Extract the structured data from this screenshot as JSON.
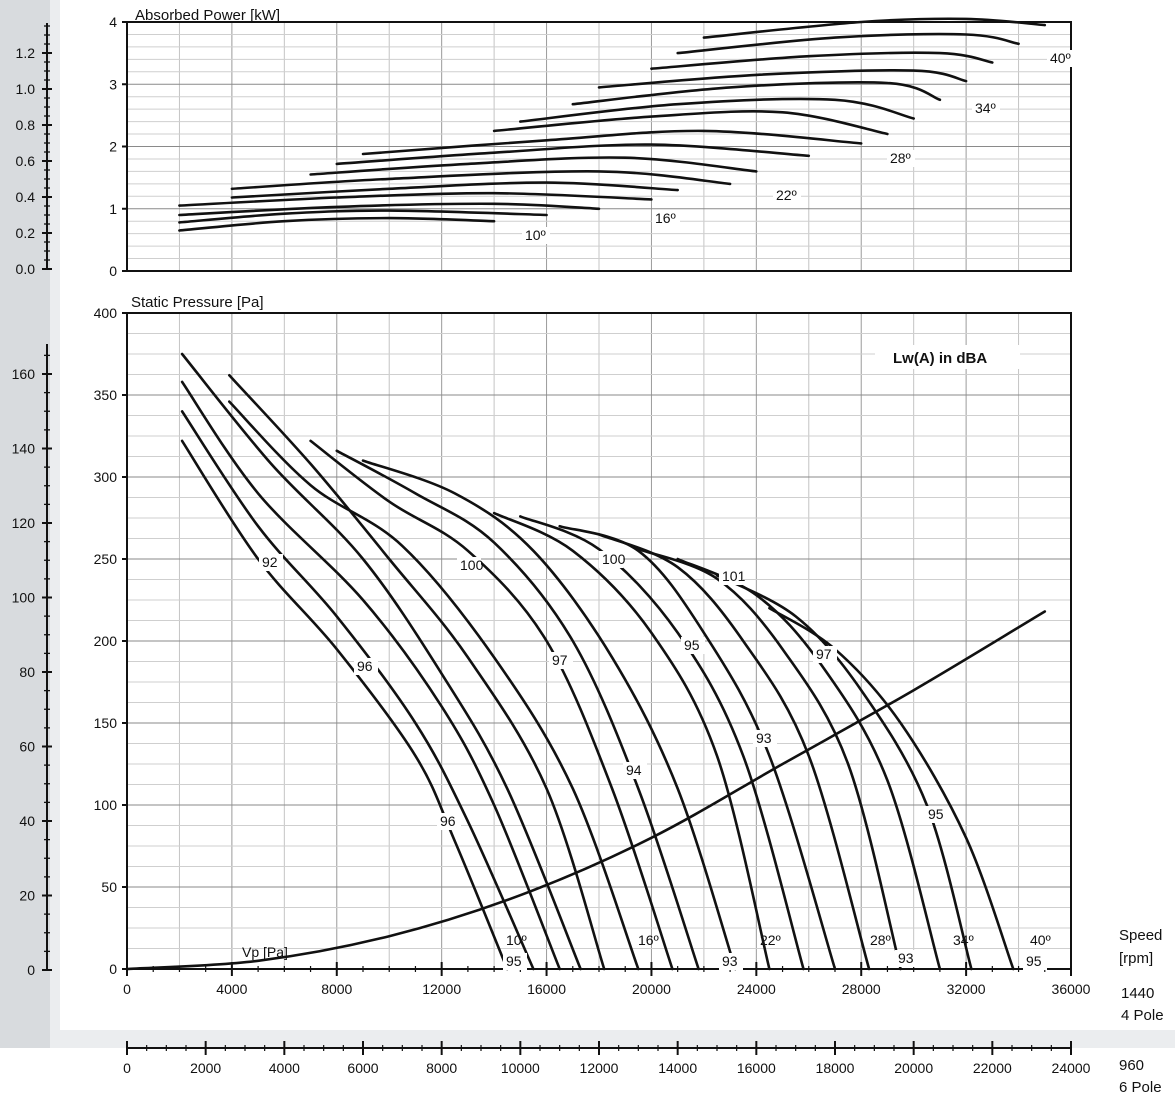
{
  "top_chart": {
    "title": "Absorbed Power [kW]",
    "y_ticks": [
      "0",
      "1",
      "2",
      "3",
      "4"
    ],
    "left_ticks": [
      "0.0",
      "0.2",
      "0.4",
      "0.6",
      "0.8",
      "1.0",
      "1.2"
    ],
    "angle_labels": [
      "10º",
      "16º",
      "22º",
      "28º",
      "34º",
      "40º"
    ]
  },
  "main_chart": {
    "title": "Static Pressure [Pa]",
    "legend": "Lw(A) in dBA",
    "y_ticks": [
      "0",
      "50",
      "100",
      "150",
      "200",
      "250",
      "300",
      "350",
      "400"
    ],
    "left_ticks": [
      "0",
      "20",
      "40",
      "60",
      "80",
      "100",
      "120",
      "140",
      "160"
    ],
    "curve_label": "Vp [Pa]",
    "angle_labels": [
      "10º",
      "16º",
      "22º",
      "28º",
      "34º",
      "40º"
    ],
    "sound_labels": [
      "92",
      "96",
      "96",
      "100",
      "97",
      "94",
      "100",
      "95",
      "93",
      "101",
      "97",
      "95",
      "95",
      "93",
      "93",
      "95"
    ]
  },
  "axis_4pole": {
    "ticks": [
      "0",
      "4000",
      "8000",
      "12000",
      "16000",
      "20000",
      "24000",
      "28000",
      "32000",
      "36000"
    ],
    "label_top": "Speed",
    "label_unit": "[rpm]",
    "label_speed": "1440",
    "label_pole": "4 Pole"
  },
  "axis_6pole": {
    "ticks": [
      "0",
      "2000",
      "4000",
      "6000",
      "8000",
      "10000",
      "12000",
      "14000",
      "16000",
      "18000",
      "20000",
      "22000",
      "24000"
    ],
    "label_speed": "960",
    "label_pole": "6 Pole"
  },
  "chart_data": [
    {
      "type": "line",
      "title": "Absorbed Power [kW]",
      "xlabel": "",
      "ylabel": "Absorbed Power [kW]",
      "xlim": [
        0,
        36000
      ],
      "ylim": [
        0,
        4
      ],
      "grid": true,
      "series": [
        {
          "name": "10º",
          "x": [
            2000,
            6000,
            10000,
            14000
          ],
          "y": [
            0.65,
            0.8,
            0.85,
            0.8
          ]
        },
        {
          "name": "",
          "x": [
            2000,
            6000,
            10000,
            16000
          ],
          "y": [
            0.78,
            0.92,
            0.97,
            0.9
          ]
        },
        {
          "name": "",
          "x": [
            2000,
            8000,
            14000,
            18000
          ],
          "y": [
            0.9,
            1.03,
            1.08,
            1.0
          ]
        },
        {
          "name": "16º",
          "x": [
            2000,
            8000,
            14000,
            20000
          ],
          "y": [
            1.05,
            1.18,
            1.25,
            1.15
          ]
        },
        {
          "name": "",
          "x": [
            4000,
            10000,
            16000,
            21000
          ],
          "y": [
            1.18,
            1.32,
            1.42,
            1.3
          ]
        },
        {
          "name": "",
          "x": [
            4000,
            10000,
            18000,
            23000
          ],
          "y": [
            1.32,
            1.48,
            1.6,
            1.4
          ]
        },
        {
          "name": "22º",
          "x": [
            7000,
            13000,
            19000,
            24000
          ],
          "y": [
            1.55,
            1.72,
            1.82,
            1.6
          ]
        },
        {
          "name": "",
          "x": [
            8000,
            14000,
            20000,
            26000
          ],
          "y": [
            1.72,
            1.9,
            2.03,
            1.85
          ]
        },
        {
          "name": "",
          "x": [
            9000,
            16000,
            22000,
            28000
          ],
          "y": [
            1.88,
            2.1,
            2.25,
            2.05
          ]
        },
        {
          "name": "28º",
          "x": [
            14000,
            20000,
            25000,
            29000
          ],
          "y": [
            2.25,
            2.48,
            2.55,
            2.2
          ]
        },
        {
          "name": "",
          "x": [
            15000,
            21000,
            27000,
            30000
          ],
          "y": [
            2.4,
            2.68,
            2.75,
            2.45
          ]
        },
        {
          "name": "",
          "x": [
            17000,
            23000,
            29000,
            31000
          ],
          "y": [
            2.68,
            2.95,
            3.02,
            2.75
          ]
        },
        {
          "name": "34º",
          "x": [
            18000,
            24000,
            30000,
            32000
          ],
          "y": [
            2.95,
            3.15,
            3.22,
            3.05
          ]
        },
        {
          "name": "",
          "x": [
            20000,
            26000,
            31000,
            33000
          ],
          "y": [
            3.25,
            3.45,
            3.5,
            3.35
          ]
        },
        {
          "name": "",
          "x": [
            21000,
            27000,
            32000,
            34000
          ],
          "y": [
            3.5,
            3.75,
            3.8,
            3.65
          ]
        },
        {
          "name": "40º",
          "x": [
            22000,
            28000,
            32000,
            35000
          ],
          "y": [
            3.75,
            4.0,
            4.05,
            3.95
          ]
        }
      ]
    },
    {
      "type": "line",
      "title": "Static Pressure [Pa]",
      "xlabel": "",
      "ylabel": "Static Pressure [Pa]",
      "xlim": [
        0,
        36000
      ],
      "ylim": [
        0,
        400
      ],
      "grid": true,
      "series": [
        {
          "name": "10º",
          "x": [
            2100,
            5000,
            8000,
            11000,
            12500,
            14500
          ],
          "y": [
            322,
            250,
            195,
            130,
            78,
            0
          ]
        },
        {
          "name": "",
          "x": [
            2100,
            5000,
            8000,
            11000,
            13000,
            15500
          ],
          "y": [
            340,
            270,
            215,
            150,
            90,
            0
          ]
        },
        {
          "name": "",
          "x": [
            2100,
            5000,
            9000,
            12000,
            14000,
            16500
          ],
          "y": [
            358,
            290,
            225,
            160,
            100,
            0
          ]
        },
        {
          "name": "",
          "x": [
            2100,
            5500,
            9000,
            12000,
            14500,
            17300
          ],
          "y": [
            375,
            308,
            250,
            180,
            110,
            0
          ]
        },
        {
          "name": "16º",
          "x": [
            3900,
            7000,
            10000,
            13000,
            16000,
            18200
          ],
          "y": [
            362,
            308,
            250,
            190,
            110,
            0
          ]
        },
        {
          "name": "",
          "x": [
            3900,
            7000,
            10500,
            14000,
            17000,
            19500
          ],
          "y": [
            346,
            295,
            258,
            190,
            110,
            0
          ]
        },
        {
          "name": "",
          "x": [
            7000,
            10000,
            13000,
            16000,
            18500,
            20800
          ],
          "y": [
            322,
            285,
            255,
            200,
            110,
            0
          ]
        },
        {
          "name": "22º",
          "x": [
            8000,
            11000,
            14000,
            17000,
            19500,
            21800
          ],
          "y": [
            316,
            290,
            260,
            200,
            110,
            0
          ]
        },
        {
          "name": "",
          "x": [
            9000,
            12500,
            15500,
            18500,
            21000,
            23200
          ],
          "y": [
            310,
            290,
            255,
            190,
            110,
            0
          ]
        },
        {
          "name": "",
          "x": [
            14000,
            17000,
            20000,
            22500,
            24500
          ],
          "y": [
            278,
            255,
            205,
            130,
            0
          ]
        },
        {
          "name": "",
          "x": [
            15000,
            18000,
            21000,
            23500,
            25800
          ],
          "y": [
            276,
            256,
            205,
            130,
            0
          ]
        },
        {
          "name": "28º",
          "x": [
            16500,
            19500,
            22000,
            24500,
            27000
          ],
          "y": [
            270,
            255,
            205,
            130,
            0
          ]
        },
        {
          "name": "",
          "x": [
            18000,
            21000,
            23500,
            26000,
            28300
          ],
          "y": [
            265,
            245,
            200,
            130,
            0
          ]
        },
        {
          "name": "",
          "x": [
            19500,
            22500,
            25000,
            27500,
            29500
          ],
          "y": [
            256,
            238,
            195,
            125,
            0
          ]
        },
        {
          "name": "34º",
          "x": [
            21000,
            24000,
            26500,
            29000,
            31000
          ],
          "y": [
            250,
            228,
            185,
            115,
            0
          ]
        },
        {
          "name": "",
          "x": [
            22500,
            25500,
            28000,
            30500,
            32200
          ],
          "y": [
            240,
            215,
            170,
            100,
            0
          ]
        },
        {
          "name": "40º",
          "x": [
            24500,
            27000,
            29500,
            32000,
            33800
          ],
          "y": [
            220,
            195,
            150,
            80,
            0
          ]
        },
        {
          "name": "Vp [Pa]",
          "x": [
            0,
            5000,
            10000,
            15000,
            20000,
            25000,
            30000,
            35000
          ],
          "y": [
            0,
            5,
            20,
            45,
            80,
            125,
            170,
            218
          ]
        }
      ]
    }
  ]
}
